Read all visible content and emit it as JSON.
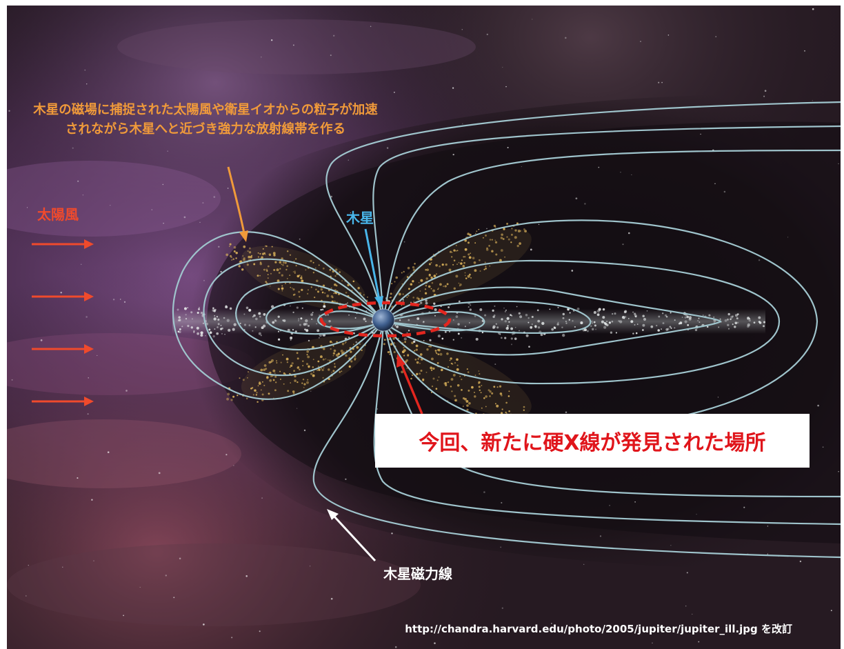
{
  "colors": {
    "caption": "#f09a3a",
    "solar_wind": "#f04a2c",
    "jupiter_label": "#49b6ea",
    "field_lines": "#9fc4cc",
    "callout_text": "#e0151b",
    "arrow_white": "#ffffff",
    "belt_dust": "#d9b15a",
    "disk_stars": "#e9ecec"
  },
  "icons": {
    "solar_wind_arrows": "right-arrow-icon",
    "planet": "jupiter-planet-icon"
  },
  "labels": {
    "belt_caption": "木星の磁場に捕捉された太陽風や衛星イオからの粒子が加速されながら木星へと近づき強力な放射線帯を作る",
    "solar_wind": "太陽風",
    "jupiter": "木星",
    "field_lines": "木星磁力線",
    "callout": "今回、新たに硬X線が発見された場所",
    "credit": "http://chandra.harvard.edu/photo/2005/jupiter/jupiter_ill.jpg を改訂"
  },
  "solar_wind_arrow_count": 4
}
